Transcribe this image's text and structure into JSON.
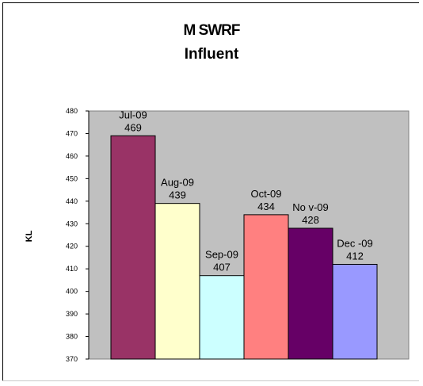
{
  "chart_data": {
    "type": "bar",
    "title": "M SWRF",
    "subtitle": "Influent",
    "ylabel": "KL",
    "xlabel": "",
    "ylim": [
      370,
      480
    ],
    "yticks": [
      "370",
      "380",
      "390",
      "400",
      "410",
      "420",
      "430",
      "440",
      "450",
      "460",
      "470",
      "480"
    ],
    "grid": false,
    "legend": "none",
    "series": [
      {
        "category": "Jul-09",
        "value": 469,
        "label": "469",
        "color": "#993366"
      },
      {
        "category": "Aug-09",
        "value": 439,
        "label": "439",
        "color": "#ffffcc"
      },
      {
        "category": "Sep-09",
        "value": 407,
        "label": "407",
        "color": "#ccffff"
      },
      {
        "category": "Oct-09",
        "value": 434,
        "label": "434",
        "color": "#ff8080"
      },
      {
        "category": "No v-09",
        "value": 428,
        "label": "428",
        "color": "#660066"
      },
      {
        "category": "Dec -09",
        "value": 412,
        "label": "412",
        "color": "#9999ff"
      }
    ],
    "plot_color": "#c0c0c0"
  }
}
